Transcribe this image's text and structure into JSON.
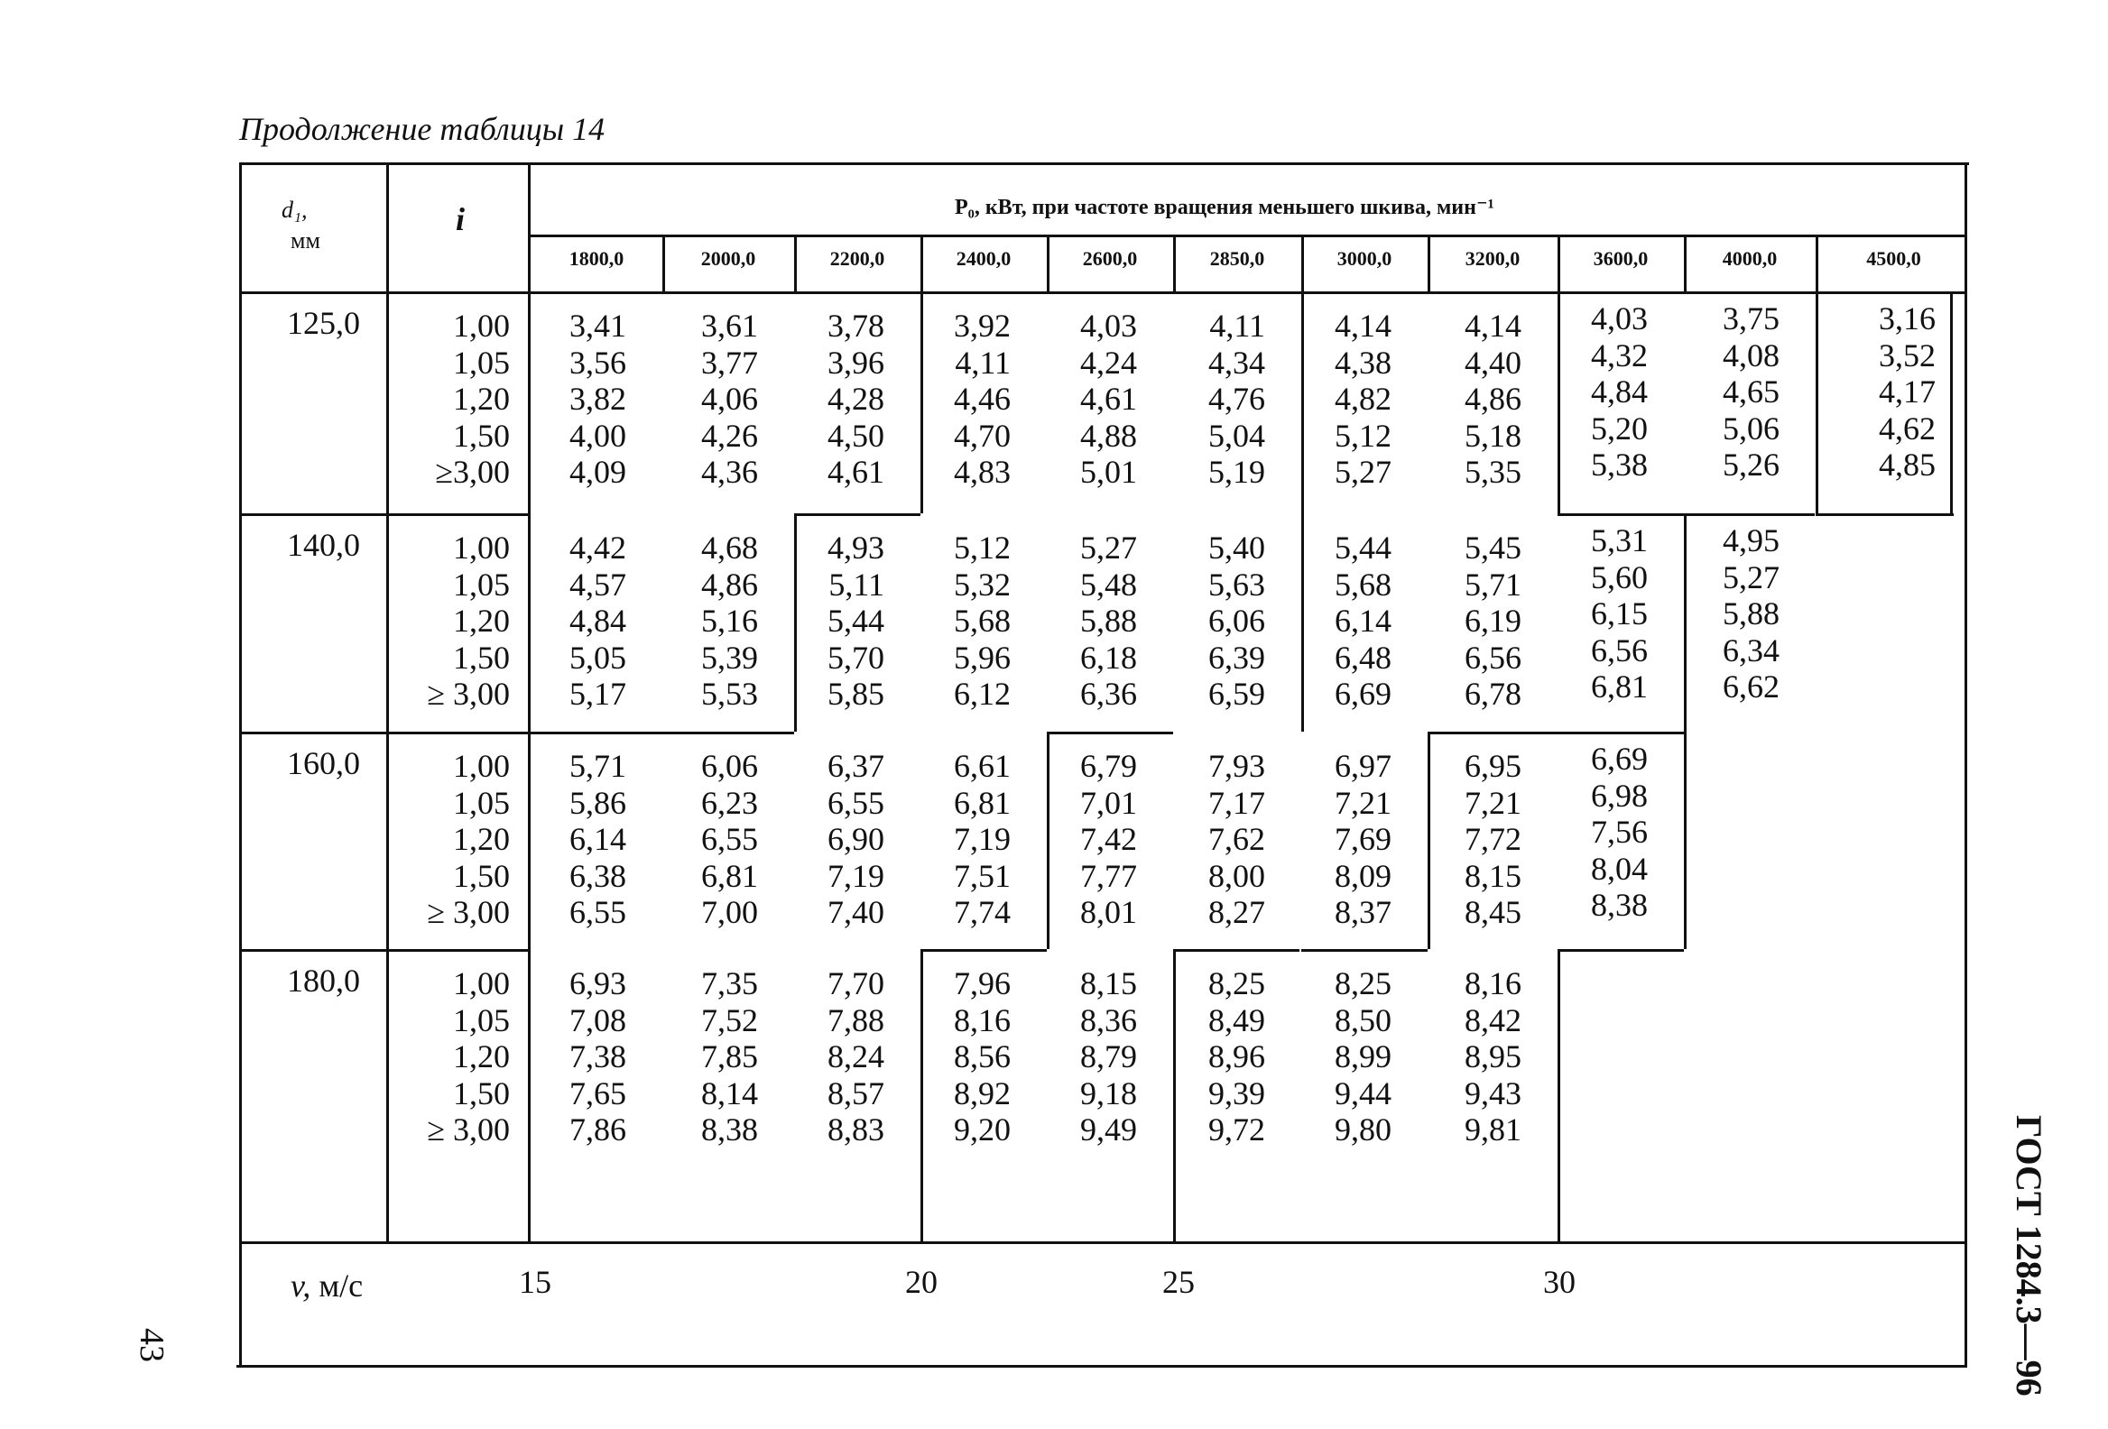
{
  "caption": "Продолжение таблицы 14",
  "header": {
    "d1_label": "d₁,",
    "d1_unit": "мм",
    "i_label": "i",
    "p0_label": "P₀, кВт, при частоте вращения меньшего шкива, мин⁻¹",
    "frequencies": [
      "1800,0",
      "2000,0",
      "2200,0",
      "2400,0",
      "2600,0",
      "2850,0",
      "3000,0",
      "3200,0",
      "3600,0",
      "4000,0",
      "4500,0"
    ]
  },
  "groups": [
    {
      "d1": "125,0",
      "i": [
        "1,00",
        "1,05",
        "1,20",
        "1,50",
        "≥3,00"
      ],
      "cols": [
        [
          "3,41",
          "3,56",
          "3,82",
          "4,00",
          "4,09"
        ],
        [
          "3,61",
          "3,77",
          "4,06",
          "4,26",
          "4,36"
        ],
        [
          "3,78",
          "3,96",
          "4,28",
          "4,50",
          "4,61"
        ],
        [
          "3,92",
          "4,11",
          "4,46",
          "4,70",
          "4,83"
        ],
        [
          "4,03",
          "4,24",
          "4,61",
          "4,88",
          "5,01"
        ],
        [
          "4,11",
          "4,34",
          "4,76",
          "5,04",
          "5,19"
        ],
        [
          "4,14",
          "4,38",
          "4,82",
          "5,12",
          "5,27"
        ],
        [
          "4,14",
          "4,40",
          "4,86",
          "5,18",
          "5,35"
        ],
        [
          "4,03",
          "4,32",
          "4,84",
          "5,20",
          "5,38"
        ],
        [
          "3,75",
          "4,08",
          "4,65",
          "5,06",
          "5,26"
        ],
        [
          "3,16",
          "3,52",
          "4,17",
          "4,62",
          "4,85"
        ]
      ]
    },
    {
      "d1": "140,0",
      "i": [
        "1,00",
        "1,05",
        "1,20",
        "1,50",
        "≥ 3,00"
      ],
      "cols": [
        [
          "4,42",
          "4,57",
          "4,84",
          "5,05",
          "5,17"
        ],
        [
          "4,68",
          "4,86",
          "5,16",
          "5,39",
          "5,53"
        ],
        [
          "4,93",
          "5,11",
          "5,44",
          "5,70",
          "5,85"
        ],
        [
          "5,12",
          "5,32",
          "5,68",
          "5,96",
          "6,12"
        ],
        [
          "5,27",
          "5,48",
          "5,88",
          "6,18",
          "6,36"
        ],
        [
          "5,40",
          "5,63",
          "6,06",
          "6,39",
          "6,59"
        ],
        [
          "5,44",
          "5,68",
          "6,14",
          "6,48",
          "6,69"
        ],
        [
          "5,45",
          "5,71",
          "6,19",
          "6,56",
          "6,78"
        ],
        [
          "5,31",
          "5,60",
          "6,15",
          "6,56",
          "6,81"
        ],
        [
          "4,95",
          "5,27",
          "5,88",
          "6,34",
          "6,62"
        ]
      ]
    },
    {
      "d1": "160,0",
      "i": [
        "1,00",
        "1,05",
        "1,20",
        "1,50",
        "≥ 3,00"
      ],
      "cols": [
        [
          "5,71",
          "5,86",
          "6,14",
          "6,38",
          "6,55"
        ],
        [
          "6,06",
          "6,23",
          "6,55",
          "6,81",
          "7,00"
        ],
        [
          "6,37",
          "6,55",
          "6,90",
          "7,19",
          "7,40"
        ],
        [
          "6,61",
          "6,81",
          "7,19",
          "7,51",
          "7,74"
        ],
        [
          "6,79",
          "7,01",
          "7,42",
          "7,77",
          "8,01"
        ],
        [
          "7,93",
          "7,17",
          "7,62",
          "8,00",
          "8,27"
        ],
        [
          "6,97",
          "7,21",
          "7,69",
          "8,09",
          "8,37"
        ],
        [
          "6,95",
          "7,21",
          "7,72",
          "8,15",
          "8,45"
        ],
        [
          "6,69",
          "6,98",
          "7,56",
          "8,04",
          "8,38"
        ]
      ]
    },
    {
      "d1": "180,0",
      "i": [
        "1,00",
        "1,05",
        "1,20",
        "1,50",
        "≥ 3,00"
      ],
      "cols": [
        [
          "6,93",
          "7,08",
          "7,38",
          "7,65",
          "7,86"
        ],
        [
          "7,35",
          "7,52",
          "7,85",
          "8,14",
          "8,38"
        ],
        [
          "7,70",
          "7,88",
          "8,24",
          "8,57",
          "8,83"
        ],
        [
          "7,96",
          "8,16",
          "8,56",
          "8,92",
          "9,20"
        ],
        [
          "8,15",
          "8,36",
          "8,79",
          "9,18",
          "9,49"
        ],
        [
          "8,25",
          "8,49",
          "8,96",
          "9,39",
          "9,72"
        ],
        [
          "8,25",
          "8,50",
          "8,99",
          "9,44",
          "9,80"
        ],
        [
          "8,16",
          "8,42",
          "8,95",
          "9,43",
          "9,81"
        ]
      ]
    }
  ],
  "velocity": {
    "label_v": "v,",
    "label_unit": "м/с",
    "ticks": [
      "15",
      "20",
      "25",
      "30"
    ]
  },
  "side_code": "ГОСТ 1284.3—96",
  "page_number": "43"
}
